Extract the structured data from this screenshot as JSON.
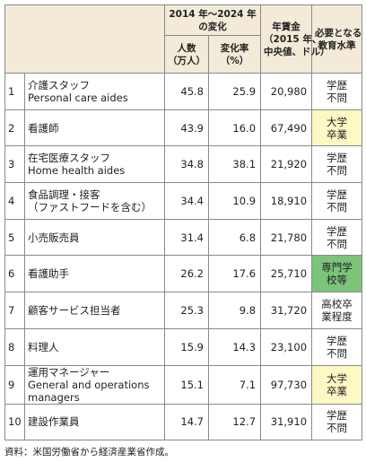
{
  "header": {
    "period": [
      "2014 年〜2024 年",
      "の変化"
    ],
    "count": [
      "人数",
      "（万人）"
    ],
    "rate": [
      "変化率",
      "（%）"
    ],
    "wage": [
      "年賃金",
      "（2015 年、",
      "中央値、ドル）"
    ],
    "education": [
      "必要となる",
      "教育水準"
    ]
  },
  "table": {
    "rows": [
      {
        "no": "1",
        "occupation": [
          "介護スタッフ",
          "Personal care aides"
        ],
        "count": "45.8",
        "rate": "25.9",
        "wage": "20,980",
        "education": [
          "学歴",
          "不問"
        ]
      },
      {
        "no": "2",
        "occupation": [
          "看護師"
        ],
        "count": "43.9",
        "rate": "16.0",
        "wage": "67,490",
        "education": [
          "大学",
          "卒業"
        ],
        "education_color": "#fdf8c4"
      },
      {
        "no": "3",
        "occupation": [
          "在宅医療スタッフ",
          "Home health aides"
        ],
        "count": "34.8",
        "rate": "38.1",
        "wage": "21,920",
        "education": [
          "学歴",
          "不問"
        ]
      },
      {
        "no": "4",
        "occupation": [
          "食品調理・接客",
          "（ファストフードを含む）"
        ],
        "count": "34.4",
        "rate": "10.9",
        "wage": "18,910",
        "education": [
          "学歴",
          "不問"
        ]
      },
      {
        "no": "5",
        "occupation": [
          "小売販売員"
        ],
        "count": "31.4",
        "rate": "6.8",
        "wage": "21,780",
        "education": [
          "学歴",
          "不問"
        ]
      },
      {
        "no": "6",
        "occupation": [
          "看護助手"
        ],
        "count": "26.2",
        "rate": "17.6",
        "wage": "25,710",
        "education": [
          "専門学",
          "校等"
        ],
        "education_color": "#7cc47a"
      },
      {
        "no": "7",
        "occupation": [
          "顧客サービス担当者"
        ],
        "count": "25.3",
        "rate": "9.8",
        "wage": "31,720",
        "education": [
          "高校卒",
          "業程度"
        ]
      },
      {
        "no": "8",
        "occupation": [
          "料理人"
        ],
        "count": "15.9",
        "rate": "14.3",
        "wage": "23,100",
        "education": [
          "学歴",
          "不問"
        ]
      },
      {
        "no": "9",
        "occupation": [
          "運用マネージャー",
          "General and operations",
          "managers"
        ],
        "count": "15.1",
        "rate": "7.1",
        "wage": "97,730",
        "education": [
          "大学",
          "卒業"
        ],
        "education_color": "#fdf8c4"
      },
      {
        "no": "10",
        "occupation": [
          "建設作業員"
        ],
        "count": "14.7",
        "rate": "12.7",
        "wage": "31,910",
        "education": [
          "学歴",
          "不問"
        ]
      }
    ]
  },
  "footer": "資料：米国労働省から経済産業省作成。"
}
